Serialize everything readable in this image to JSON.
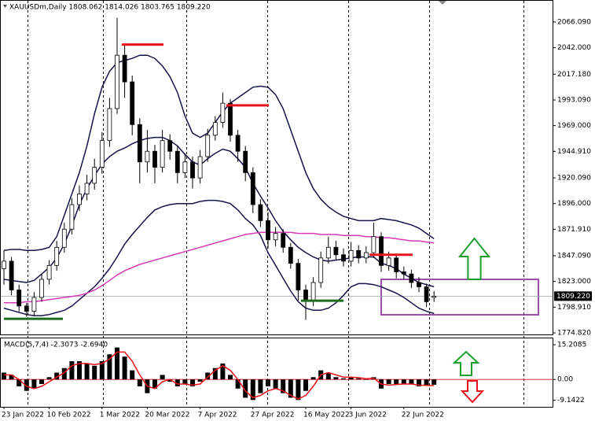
{
  "chart_data": [
    {
      "type": "candlestick",
      "title": "XAUUSDm,Daily  1808.062 1814.026 1803.765 1809.220",
      "categories": [
        "23 Jan 2022",
        null,
        null,
        null,
        null,
        null,
        "10 Feb 2022",
        null,
        null,
        null,
        null,
        null,
        null,
        "1 Mar 2022",
        null,
        null,
        null,
        null,
        null,
        "20 Mar 2022",
        null,
        null,
        null,
        null,
        null,
        null,
        "7 Apr 2022",
        null,
        null,
        null,
        null,
        null,
        null,
        "27 Apr 2022",
        null,
        null,
        null,
        null,
        null,
        null,
        "16 May 2022",
        null,
        null,
        null,
        null,
        null,
        "3 Jun 2022",
        null,
        null,
        null,
        null,
        null,
        null,
        "22 Jun 2022",
        null,
        null,
        null,
        null
      ],
      "open": [
        1835,
        1842,
        1815,
        1800,
        1795,
        1808,
        1825,
        1838,
        1855,
        1872,
        1895,
        1905,
        1915,
        1930,
        1955,
        1985,
        2035,
        2010,
        1970,
        1935,
        1945,
        1930,
        1955,
        1945,
        1925,
        1935,
        1920,
        1940,
        1960,
        1972,
        1990,
        1960,
        1945,
        1925,
        1895,
        1880,
        1862,
        1868,
        1855,
        1840,
        1815,
        1805,
        1822,
        1845,
        1855,
        1848,
        1842,
        1852,
        1845,
        1850,
        1865,
        1838,
        1845,
        1832,
        1830,
        1822,
        1818,
        1808.062
      ],
      "high": [
        1852,
        1846,
        1820,
        1803,
        1813,
        1830,
        1843,
        1861,
        1878,
        1901,
        1913,
        1923,
        1938,
        1963,
        1995,
        2070,
        2045,
        2016,
        1976,
        1965,
        1951,
        1965,
        1961,
        1950,
        1943,
        1940,
        1946,
        1966,
        1978,
        2000,
        1994,
        1965,
        1950,
        1930,
        1900,
        1888,
        1874,
        1872,
        1859,
        1844,
        1820,
        1827,
        1851,
        1865,
        1861,
        1854,
        1860,
        1857,
        1856,
        1878,
        1869,
        1851,
        1849,
        1837,
        1834,
        1827,
        1821,
        1814.026
      ],
      "low": [
        1820,
        1810,
        1795,
        1790,
        1791,
        1804,
        1820,
        1833,
        1850,
        1867,
        1889,
        1899,
        1909,
        1924,
        1949,
        1980,
        1995,
        1960,
        1915,
        1925,
        1915,
        1925,
        1937,
        1915,
        1920,
        1910,
        1915,
        1935,
        1955,
        1967,
        1954,
        1935,
        1917,
        1887,
        1874,
        1854,
        1856,
        1850,
        1835,
        1805,
        1787,
        1800,
        1817,
        1840,
        1843,
        1837,
        1837,
        1840,
        1840,
        1845,
        1832,
        1833,
        1826,
        1825,
        1817,
        1813,
        1799,
        1803.765
      ],
      "close": [
        1842,
        1815,
        1800,
        1795,
        1808,
        1825,
        1838,
        1855,
        1872,
        1895,
        1905,
        1915,
        1930,
        1955,
        1985,
        2035,
        2010,
        1970,
        1935,
        1945,
        1930,
        1955,
        1945,
        1925,
        1935,
        1920,
        1940,
        1960,
        1972,
        1990,
        1960,
        1945,
        1925,
        1895,
        1880,
        1862,
        1868,
        1855,
        1840,
        1815,
        1805,
        1822,
        1845,
        1855,
        1848,
        1842,
        1852,
        1845,
        1850,
        1865,
        1838,
        1845,
        1832,
        1830,
        1822,
        1818,
        1804,
        1809.22
      ],
      "bull_color": "#ffffff",
      "bear_color": "#000000",
      "lines": [
        {
          "color": "#14144a",
          "values": [
            1852,
            1853,
            1853,
            1852,
            1852,
            1853,
            1855,
            1865,
            1885,
            1905,
            1925,
            1950,
            1980,
            2005,
            2020,
            2028,
            2030,
            2032,
            2035,
            2035,
            2032,
            2025,
            2015,
            2000,
            1978,
            1962,
            1958,
            1962,
            1972,
            1982,
            1990,
            1995,
            2000,
            2005,
            2006,
            2005,
            1998,
            1985,
            1965,
            1945,
            1925,
            1910,
            1900,
            1893,
            1888,
            1884,
            1882,
            1880,
            1880,
            1880,
            1882,
            1881,
            1880,
            1878,
            1876,
            1873,
            1868,
            1863
          ]
        },
        {
          "color": "#14144a",
          "values": [
            1825,
            1824,
            1823,
            1822,
            1824,
            1830,
            1836,
            1845,
            1858,
            1875,
            1895,
            1910,
            1922,
            1933,
            1940,
            1945,
            1948,
            1952,
            1955,
            1957,
            1958,
            1958,
            1955,
            1950,
            1942,
            1935,
            1932,
            1938,
            1943,
            1947,
            1945,
            1938,
            1930,
            1915,
            1903,
            1892,
            1880,
            1870,
            1862,
            1855,
            1850,
            1846,
            1843,
            1842,
            1843,
            1844,
            1845,
            1846,
            1846,
            1846,
            1840,
            1838,
            1835,
            1830,
            1826,
            1822,
            1820,
            1818
          ]
        },
        {
          "color": "#14144a",
          "values": [
            1798,
            1796,
            1794,
            1792,
            1791,
            1791,
            1792,
            1794,
            1796,
            1800,
            1806,
            1812,
            1818,
            1826,
            1835,
            1846,
            1858,
            1867,
            1875,
            1883,
            1890,
            1893,
            1895,
            1896,
            1896,
            1896,
            1898,
            1899,
            1899,
            1898,
            1896,
            1890,
            1882,
            1876,
            1866,
            1850,
            1838,
            1826,
            1814,
            1804,
            1798,
            1796,
            1796,
            1798,
            1803,
            1810,
            1818,
            1821,
            1821,
            1820,
            1818,
            1815,
            1812,
            1808,
            1803,
            1798,
            1795,
            1793
          ]
        },
        {
          "color": "#d63ab4",
          "values": [
            1803,
            1803,
            1803,
            1804,
            1804,
            1805,
            1806,
            1807,
            1808,
            1809,
            1810,
            1812,
            1815,
            1819,
            1824,
            1829,
            1833,
            1836,
            1839,
            1841,
            1843,
            1845,
            1847,
            1849,
            1851,
            1853,
            1855,
            1857,
            1859,
            1861,
            1863,
            1865,
            1867,
            1868,
            1869,
            1869,
            1869,
            1869,
            1869,
            1868,
            1868,
            1868,
            1867,
            1867,
            1867,
            1866,
            1866,
            1866,
            1865,
            1865,
            1864,
            1864,
            1863,
            1862,
            1861,
            1861,
            1860,
            1859
          ]
        }
      ],
      "levels": [
        {
          "value": 2045,
          "color": "#e8121b"
        },
        {
          "value": 1988,
          "color": "#e8121b"
        },
        {
          "value": 1848,
          "color": "#e8121b"
        },
        {
          "value": 1805,
          "color": "#1e6b1e"
        },
        {
          "value": 1788,
          "color": "#1e6b1e"
        }
      ],
      "current_price": {
        "value": 1809.22,
        "label": "1809.220"
      },
      "ylim": [
        1773.35,
        2086.73
      ],
      "yticks": [
        {
          "value": 2066.09,
          "label": "2066.090"
        },
        {
          "value": 2042,
          "label": "2042.000"
        },
        {
          "value": 2017.18,
          "label": "2017.180"
        },
        {
          "value": 1993.09,
          "label": "1993.090"
        },
        {
          "value": 1969,
          "label": "1969.000"
        },
        {
          "value": 1944.91,
          "label": "1944.910"
        },
        {
          "value": 1920.09,
          "label": "1920.090"
        },
        {
          "value": 1896,
          "label": "1896.000"
        },
        {
          "value": 1871.91,
          "label": "1871.910"
        },
        {
          "value": 1847.09,
          "label": "1847.090"
        },
        {
          "value": 1823,
          "label": "1823.000"
        },
        {
          "value": 1798.91,
          "label": "1798.910"
        },
        {
          "value": 1774.82,
          "label": "1774.820"
        }
      ]
    },
    {
      "type": "macd",
      "title": "MACD(5,7,4) -2.3073 -2.6940",
      "values": [
        3,
        2,
        -3,
        -5,
        -4,
        -2,
        1,
        3,
        5,
        8,
        8,
        7,
        6,
        8,
        11,
        14,
        10,
        4,
        -3,
        -6,
        -4,
        2,
        -1,
        -3,
        -2,
        -3,
        -1,
        3,
        5,
        7,
        2,
        -4,
        -8,
        -9,
        -6,
        -3,
        -4,
        -6,
        -8,
        -9,
        -5,
        1,
        4,
        3,
        1,
        0.5,
        1,
        0.5,
        0,
        1,
        -4,
        -2,
        -2,
        -2,
        -2,
        -3,
        -2.6,
        -2.3073
      ],
      "signal": [
        2,
        2,
        0,
        -3,
        -4,
        -3,
        -1,
        1,
        3,
        6,
        7,
        7,
        6.5,
        7,
        9,
        12,
        12,
        8,
        2,
        -3,
        -4,
        -1,
        0,
        -2,
        -2,
        -2.5,
        -2,
        1,
        4,
        6,
        4,
        0,
        -5,
        -8,
        -7,
        -5,
        -4,
        -5,
        -7,
        -8.5,
        -7,
        -3,
        2,
        3,
        2,
        1,
        1,
        0.8,
        0.3,
        0.6,
        -2,
        -2.5,
        -2.2,
        -2,
        -2,
        -2.5,
        -2.6,
        -2.694
      ],
      "color": "#000000",
      "signal_color": "#e8121b",
      "ylim": [
        -12,
        18
      ],
      "yticks": [
        15.2085,
        {
          "value": 0,
          "label": "0.00"
        },
        -9.1422
      ]
    }
  ]
}
